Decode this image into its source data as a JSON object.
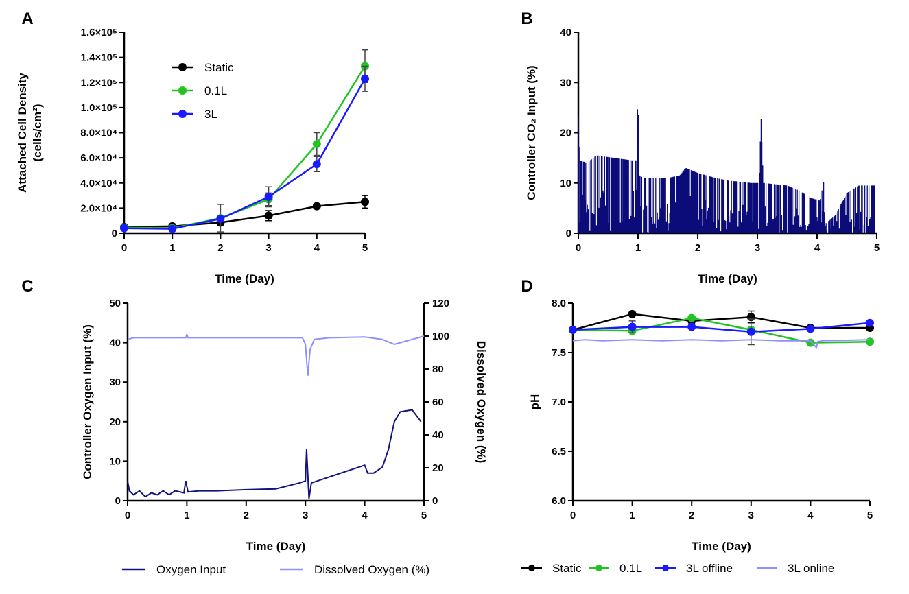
{
  "colors": {
    "static": "#000000",
    "l01": "#22c322",
    "l3": "#1a1aff",
    "co2": "#0b0b7a",
    "o2": "#12127f",
    "do": "#8f8fff",
    "online": "#8f8fff"
  },
  "chart_data": [
    {
      "panel": "A",
      "type": "line",
      "xlabel": "Time (Day)",
      "ylabel": [
        "Attached Cell Density",
        "(cells/cm²)"
      ],
      "xlim": [
        0,
        5
      ],
      "ylim": [
        0,
        160000
      ],
      "xticks": [
        "0",
        "1",
        "2",
        "3",
        "4",
        "5"
      ],
      "yticks": [
        "0",
        "2.0×10⁴",
        "4.0×10⁴",
        "6.0×10⁴",
        "8.0×10⁴",
        "1.0×10⁵",
        "1.2×10⁵",
        "1.4×10⁵",
        "1.6×10⁵"
      ],
      "legend": "top-left",
      "x": [
        0,
        1,
        2,
        3,
        4,
        5
      ],
      "series": [
        {
          "name": "Static",
          "color": "#000000",
          "values": [
            5000,
            5500,
            8500,
            14000,
            21500,
            25000
          ],
          "err": [
            1000,
            1000,
            2000,
            4000,
            1500,
            5000
          ]
        },
        {
          "name": "0.1L",
          "color": "#22c322",
          "values": [
            4500,
            4000,
            12000,
            27000,
            71000,
            133000
          ],
          "err": [
            500,
            500,
            11000,
            5000,
            9000,
            13000
          ]
        },
        {
          "name": "3L",
          "color": "#1a1aff",
          "values": [
            4000,
            3500,
            11500,
            29000,
            55000,
            123000
          ],
          "err": [
            500,
            500,
            1000,
            8000,
            6000,
            10000
          ]
        }
      ]
    },
    {
      "panel": "B",
      "type": "area",
      "xlabel": "Time (Day)",
      "ylabel": "Controller CO₂ Input (%)",
      "xlim": [
        0,
        5
      ],
      "ylim": [
        0,
        40
      ],
      "xticks": [
        "0",
        "1",
        "2",
        "3",
        "4",
        "5"
      ],
      "yticks": [
        "0",
        "10",
        "20",
        "30",
        "40"
      ],
      "series": [
        {
          "name": "",
          "color": "#0b0b7a",
          "x": [
            0,
            0.02,
            0.15,
            0.3,
            0.6,
            0.9,
            0.98,
            1.0,
            1.02,
            1.1,
            1.5,
            1.7,
            1.8,
            2.0,
            2.3,
            2.5,
            2.9,
            3.03,
            3.06,
            3.1,
            3.5,
            3.7,
            3.9,
            4.05,
            4.12,
            4.15,
            4.3,
            4.5,
            4.7,
            4.95
          ],
          "values": [
            23,
            14.5,
            14,
            15.5,
            15,
            14.5,
            14.5,
            30,
            11.5,
            11,
            11,
            11.5,
            13,
            12,
            11,
            10.5,
            10,
            10,
            23.5,
            10,
            9.5,
            8.5,
            7,
            6.5,
            10.8,
            2,
            3.5,
            8,
            9.5,
            9.5
          ]
        }
      ]
    },
    {
      "panel": "C",
      "type": "line",
      "xlabel": "Time (Day)",
      "ylabel": "Controller Oxygen Input (%)",
      "y2label": "Dissolved Oxygen (%)",
      "xlim": [
        0,
        5
      ],
      "ylim": [
        0,
        50
      ],
      "y2lim": [
        0,
        120
      ],
      "xticks": [
        "0",
        "1",
        "2",
        "3",
        "4",
        "5"
      ],
      "yticks": [
        "0",
        "10",
        "20",
        "30",
        "40",
        "50"
      ],
      "y2ticks": [
        "0",
        "20",
        "40",
        "60",
        "80",
        "100",
        "120"
      ],
      "legend": "bottom",
      "series": [
        {
          "name": "Oxygen Input",
          "axis": "left",
          "color": "#12127f",
          "x": [
            0,
            0.03,
            0.1,
            0.2,
            0.3,
            0.4,
            0.5,
            0.6,
            0.7,
            0.8,
            0.95,
            0.98,
            1.02,
            1.2,
            1.5,
            2,
            2.5,
            2.9,
            3.0,
            3.02,
            3.06,
            3.1,
            3.5,
            4.0,
            4.05,
            4.15,
            4.3,
            4.4,
            4.5,
            4.6,
            4.8,
            4.95
          ],
          "values": [
            5,
            2.5,
            1.5,
            2.5,
            1,
            2,
            1.5,
            2.5,
            1.5,
            2.5,
            2,
            5,
            2.2,
            2.5,
            2.5,
            2.8,
            3,
            4.5,
            5,
            13,
            0.5,
            4.5,
            6.5,
            9,
            7,
            7,
            8.5,
            13,
            20,
            22.5,
            23,
            20
          ]
        },
        {
          "name": "Dissolved Oxygen (%)",
          "axis": "right",
          "color": "#8f8fff",
          "x": [
            0,
            0.1,
            0.98,
            1.0,
            1.02,
            2,
            2.95,
            3.0,
            3.04,
            3.08,
            3.15,
            3.4,
            4,
            4.3,
            4.5,
            4.6,
            4.8,
            5
          ],
          "values": [
            98,
            99,
            99,
            101,
            99,
            99,
            99,
            95,
            76,
            92,
            98,
            99,
            99.5,
            98,
            95,
            96,
            98,
            100
          ]
        }
      ]
    },
    {
      "panel": "D",
      "type": "line",
      "xlabel": "Time (Day)",
      "ylabel": "pH",
      "xlim": [
        0,
        5
      ],
      "ylim": [
        6.0,
        8.0
      ],
      "xticks": [
        "0",
        "1",
        "2",
        "3",
        "4",
        "5"
      ],
      "yticks": [
        "6.0",
        "6.5",
        "7.0",
        "7.5",
        "8.0"
      ],
      "legend": "bottom",
      "x": [
        0,
        1,
        2,
        3,
        4,
        5
      ],
      "series": [
        {
          "name": "Static",
          "color": "#000000",
          "values": [
            7.73,
            7.89,
            7.82,
            7.86,
            7.75,
            7.75
          ],
          "err": [
            0.02,
            0.01,
            0.02,
            0.06,
            0.01,
            0.01
          ]
        },
        {
          "name": "0.1L",
          "color": "#22c322",
          "values": [
            7.73,
            7.72,
            7.85,
            7.73,
            7.6,
            7.61
          ],
          "err": [
            0.01,
            0.01,
            0.01,
            0.02,
            0.01,
            0.01
          ]
        },
        {
          "name": "3L offline",
          "color": "#1a1aff",
          "values": [
            7.73,
            7.76,
            7.76,
            7.71,
            7.74,
            7.8
          ],
          "err": [
            0.01,
            0.06,
            0.01,
            0.13,
            0.01,
            0.01
          ]
        },
        {
          "name": "3L online",
          "color": "#8f8fff",
          "line_only": true,
          "x": [
            0,
            0.2,
            0.5,
            1,
            1.5,
            2,
            2.5,
            3,
            3.5,
            4.0,
            4.1,
            4.12,
            4.2,
            5
          ],
          "values": [
            7.62,
            7.63,
            7.62,
            7.63,
            7.62,
            7.63,
            7.62,
            7.63,
            7.62,
            7.62,
            7.55,
            7.61,
            7.62,
            7.63
          ]
        }
      ]
    }
  ]
}
